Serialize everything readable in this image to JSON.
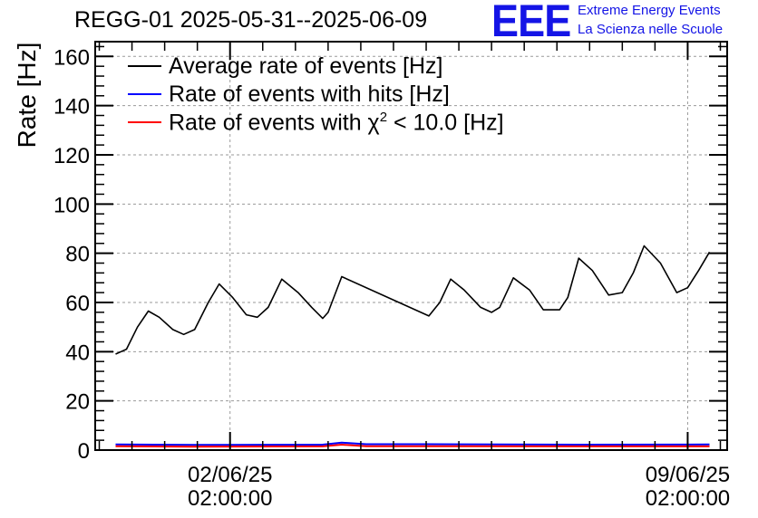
{
  "header": {
    "title": "REGG-01 2025-05-31--2025-06-09",
    "logo": "EEE",
    "logo_line1": "Extreme Energy Events",
    "logo_line2": "La Scienza nelle Scuole"
  },
  "legend": {
    "items": [
      {
        "label": "Average rate of events [Hz]",
        "color": "#000000"
      },
      {
        "label": "Rate of events with hits [Hz]",
        "color": "#0000ff"
      },
      {
        "label_prefix": "Rate of events with χ",
        "label_sup": "2",
        "label_suffix": " < 10.0 [Hz]",
        "color": "#ff0000"
      }
    ]
  },
  "chart_data": {
    "type": "line",
    "title": "REGG-01 2025-05-31--2025-06-09",
    "xlabel": "",
    "ylabel": "Rate [Hz]",
    "xlim": [
      "2025-05-31 00:30",
      "2025-06-09 16:30"
    ],
    "ylim": [
      0,
      166
    ],
    "y_ticks": [
      0,
      20,
      40,
      60,
      80,
      100,
      120,
      140,
      160
    ],
    "x_tick_labels": [
      {
        "x": "2025-06-02 02:00:00",
        "date": "02/06/25",
        "time": "02:00:00"
      },
      {
        "x": "2025-06-09 02:00:00",
        "date": "09/06/25",
        "time": "02:00:00"
      }
    ],
    "grid": true,
    "legend_position": "top-left",
    "series": [
      {
        "name": "Average rate of events [Hz]",
        "color": "#000000",
        "points": [
          [
            "2025-05-31 08:00",
            39
          ],
          [
            "2025-05-31 10:00",
            40
          ],
          [
            "2025-05-31 12:00",
            41
          ],
          [
            "2025-05-31 16:00",
            50
          ],
          [
            "2025-05-31 20:00",
            56.5
          ],
          [
            "2025-06-01 00:00",
            54
          ],
          [
            "2025-06-01 05:00",
            49
          ],
          [
            "2025-06-01 09:00",
            47
          ],
          [
            "2025-06-01 13:00",
            49
          ],
          [
            "2025-06-01 18:00",
            60
          ],
          [
            "2025-06-01 22:00",
            67.5
          ],
          [
            "2025-06-02 03:00",
            62
          ],
          [
            "2025-06-02 08:00",
            55
          ],
          [
            "2025-06-02 12:00",
            54
          ],
          [
            "2025-06-02 16:00",
            58
          ],
          [
            "2025-06-02 21:00",
            69.5
          ],
          [
            "2025-06-03 03:00",
            64
          ],
          [
            "2025-06-03 08:00",
            58
          ],
          [
            "2025-06-03 12:00",
            53.5
          ],
          [
            "2025-06-03 14:00",
            56
          ],
          [
            "2025-06-03 19:00",
            70.5
          ],
          [
            "2025-06-05 03:00",
            54.5
          ],
          [
            "2025-06-05 07:00",
            60
          ],
          [
            "2025-06-05 11:00",
            69.5
          ],
          [
            "2025-06-05 16:00",
            65
          ],
          [
            "2025-06-05 22:00",
            58
          ],
          [
            "2025-06-06 02:00",
            56
          ],
          [
            "2025-06-06 05:00",
            58
          ],
          [
            "2025-06-06 10:00",
            70
          ],
          [
            "2025-06-06 16:00",
            65
          ],
          [
            "2025-06-06 21:00",
            57
          ],
          [
            "2025-06-07 03:00",
            57
          ],
          [
            "2025-06-07 06:00",
            62
          ],
          [
            "2025-06-07 10:00",
            78
          ],
          [
            "2025-06-07 15:00",
            73
          ],
          [
            "2025-06-07 21:00",
            63
          ],
          [
            "2025-06-08 02:00",
            64
          ],
          [
            "2025-06-08 06:00",
            72
          ],
          [
            "2025-06-08 10:00",
            83
          ],
          [
            "2025-06-08 16:00",
            76
          ],
          [
            "2025-06-08 22:00",
            64
          ],
          [
            "2025-06-09 02:00",
            66
          ],
          [
            "2025-06-09 06:00",
            73
          ],
          [
            "2025-06-09 10:00",
            80.5
          ]
        ]
      },
      {
        "name": "Rate of events with hits [Hz]",
        "color": "#0000ff",
        "points": [
          [
            "2025-05-31 08:00",
            2.3
          ],
          [
            "2025-06-01 12:00",
            2.1
          ],
          [
            "2025-06-03 12:00",
            2.2
          ],
          [
            "2025-06-03 19:00",
            3.0
          ],
          [
            "2025-06-04 04:00",
            2.4
          ],
          [
            "2025-06-05 03:00",
            2.4
          ],
          [
            "2025-06-07 12:00",
            2.2
          ],
          [
            "2025-06-09 10:00",
            2.3
          ]
        ]
      },
      {
        "name": "Rate of events with χ² < 10.0 [Hz]",
        "color": "#ff0000",
        "points": [
          [
            "2025-05-31 08:00",
            1.6
          ],
          [
            "2025-06-01 12:00",
            1.4
          ],
          [
            "2025-06-03 12:00",
            1.5
          ],
          [
            "2025-06-03 19:00",
            2.2
          ],
          [
            "2025-06-04 04:00",
            1.6
          ],
          [
            "2025-06-05 03:00",
            1.6
          ],
          [
            "2025-06-07 12:00",
            1.5
          ],
          [
            "2025-06-09 10:00",
            1.5
          ]
        ]
      }
    ]
  }
}
